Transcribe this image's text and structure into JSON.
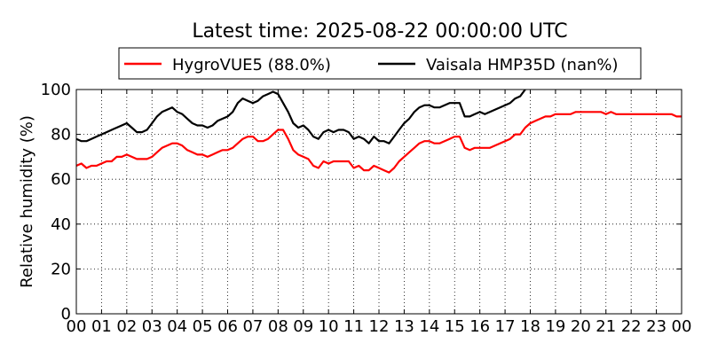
{
  "chart_data": {
    "type": "line",
    "title": "Latest time: 2025-08-22 00:00:00 UTC",
    "ylabel": "Relative humidity (%)",
    "xlabel": "",
    "xlim": [
      0,
      24
    ],
    "ylim": [
      0,
      100
    ],
    "grid": true,
    "grid_style": "dotted",
    "legend_position": "top",
    "x_tick_labels": [
      "00",
      "01",
      "02",
      "03",
      "04",
      "05",
      "06",
      "07",
      "08",
      "09",
      "10",
      "11",
      "12",
      "13",
      "14",
      "15",
      "16",
      "17",
      "18",
      "19",
      "20",
      "21",
      "22",
      "23",
      "00"
    ],
    "y_ticks": [
      0,
      20,
      40,
      60,
      80,
      100
    ],
    "series": [
      {
        "name": "HygroVUE5 (88.0%)",
        "color": "#ff0000",
        "x": [
          0,
          0.2,
          0.4,
          0.6,
          0.8,
          1,
          1.2,
          1.4,
          1.6,
          1.8,
          2,
          2.2,
          2.4,
          2.6,
          2.8,
          3,
          3.2,
          3.4,
          3.6,
          3.8,
          4,
          4.2,
          4.4,
          4.6,
          4.8,
          5,
          5.2,
          5.4,
          5.6,
          5.8,
          6,
          6.2,
          6.4,
          6.6,
          6.8,
          7,
          7.2,
          7.4,
          7.6,
          7.8,
          8,
          8.2,
          8.4,
          8.6,
          8.8,
          9,
          9.2,
          9.4,
          9.6,
          9.8,
          10,
          10.2,
          10.4,
          10.6,
          10.8,
          11,
          11.2,
          11.4,
          11.6,
          11.8,
          12,
          12.2,
          12.4,
          12.6,
          12.8,
          13,
          13.2,
          13.4,
          13.6,
          13.8,
          14,
          14.2,
          14.4,
          14.6,
          14.8,
          15,
          15.2,
          15.4,
          15.6,
          15.8,
          16,
          16.2,
          16.4,
          16.6,
          16.8,
          17,
          17.2,
          17.4,
          17.6,
          17.8,
          18,
          18.2,
          18.4,
          18.6,
          18.8,
          19,
          19.2,
          19.4,
          19.6,
          19.8,
          20,
          20.2,
          20.4,
          20.6,
          20.8,
          21,
          21.2,
          21.4,
          21.6,
          21.8,
          22,
          22.2,
          22.4,
          22.6,
          22.8,
          23,
          23.2,
          23.4,
          23.6,
          23.8,
          24
        ],
        "y": [
          66,
          67,
          65,
          66,
          66,
          67,
          68,
          68,
          70,
          70,
          71,
          70,
          69,
          69,
          69,
          70,
          72,
          74,
          75,
          76,
          76,
          75,
          73,
          72,
          71,
          71,
          70,
          71,
          72,
          73,
          73,
          74,
          76,
          78,
          79,
          79,
          77,
          77,
          78,
          80,
          82,
          82,
          78,
          73,
          71,
          70,
          69,
          66,
          65,
          68,
          67,
          68,
          68,
          68,
          68,
          65,
          66,
          64,
          64,
          66,
          65,
          64,
          63,
          65,
          68,
          70,
          72,
          74,
          76,
          77,
          77,
          76,
          76,
          77,
          78,
          79,
          79,
          74,
          73,
          74,
          74,
          74,
          74,
          75,
          76,
          77,
          78,
          80,
          80,
          83,
          85,
          86,
          87,
          88,
          88,
          89,
          89,
          89,
          89,
          90,
          90,
          90,
          90,
          90,
          90,
          89,
          90,
          89,
          89,
          89,
          89,
          89,
          89,
          89,
          89,
          89,
          89,
          89,
          89,
          88,
          88
        ]
      },
      {
        "name": "Vaisala HMP35D (nan%)",
        "color": "#000000",
        "x": [
          0,
          0.2,
          0.4,
          0.6,
          0.8,
          1,
          1.2,
          1.4,
          1.6,
          1.8,
          2,
          2.2,
          2.4,
          2.6,
          2.8,
          3,
          3.2,
          3.4,
          3.6,
          3.8,
          4,
          4.2,
          4.4,
          4.6,
          4.8,
          5,
          5.2,
          5.4,
          5.6,
          5.8,
          6,
          6.2,
          6.4,
          6.6,
          6.8,
          7,
          7.2,
          7.4,
          7.6,
          7.8,
          8,
          8.2,
          8.4,
          8.6,
          8.8,
          9,
          9.2,
          9.4,
          9.6,
          9.8,
          10,
          10.2,
          10.4,
          10.6,
          10.8,
          11,
          11.2,
          11.4,
          11.6,
          11.8,
          12,
          12.2,
          12.4,
          12.6,
          12.8,
          13,
          13.2,
          13.4,
          13.6,
          13.8,
          14,
          14.2,
          14.4,
          14.6,
          14.8,
          15,
          15.2,
          15.4,
          15.6,
          15.8,
          16,
          16.2,
          16.4,
          16.6,
          16.8,
          17,
          17.2,
          17.4,
          17.6,
          17.8
        ],
        "y": [
          78,
          77,
          77,
          78,
          79,
          80,
          81,
          82,
          83,
          84,
          85,
          83,
          81,
          81,
          82,
          85,
          88,
          90,
          91,
          92,
          90,
          89,
          87,
          85,
          84,
          84,
          83,
          84,
          86,
          87,
          88,
          90,
          94,
          96,
          95,
          94,
          95,
          97,
          98,
          99,
          98,
          94,
          90,
          85,
          83,
          84,
          82,
          79,
          78,
          81,
          82,
          81,
          82,
          82,
          81,
          78,
          79,
          78,
          76,
          79,
          77,
          77,
          76,
          79,
          82,
          85,
          87,
          90,
          92,
          93,
          93,
          92,
          92,
          93,
          94,
          94,
          94,
          88,
          88,
          89,
          90,
          89,
          90,
          91,
          92,
          93,
          94,
          96,
          97,
          100
        ]
      }
    ]
  }
}
